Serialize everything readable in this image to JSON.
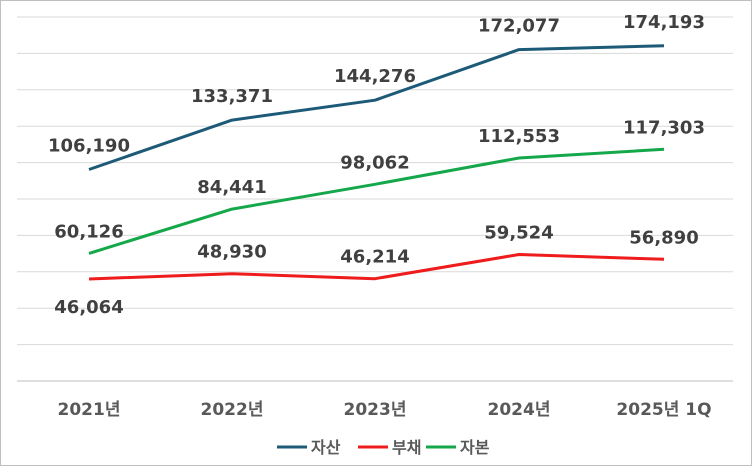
{
  "chart_data": {
    "type": "line",
    "categories": [
      "2021년",
      "2022년",
      "2023년",
      "2024년",
      "2025년 1Q"
    ],
    "series": [
      {
        "name": "자산",
        "color": "#1d5a78",
        "values": [
          106190,
          133371,
          144276,
          172077,
          174193
        ],
        "labels": [
          "106,190",
          "133,371",
          "144,276",
          "172,077",
          "174,193"
        ]
      },
      {
        "name": "부채",
        "color": "#ee1c1c",
        "values": [
          46064,
          48930,
          46214,
          59524,
          56890
        ],
        "labels": [
          "46,064",
          "48,930",
          "46,214",
          "59,524",
          "56,890"
        ]
      },
      {
        "name": "자본",
        "color": "#14a84a",
        "values": [
          60126,
          84441,
          98062,
          112553,
          117303
        ],
        "labels": [
          "60,126",
          "84,441",
          "98,062",
          "112,553",
          "117,303"
        ]
      }
    ],
    "ylim": [
      -10000,
      190000
    ],
    "grid": true,
    "legend": "bottom"
  }
}
